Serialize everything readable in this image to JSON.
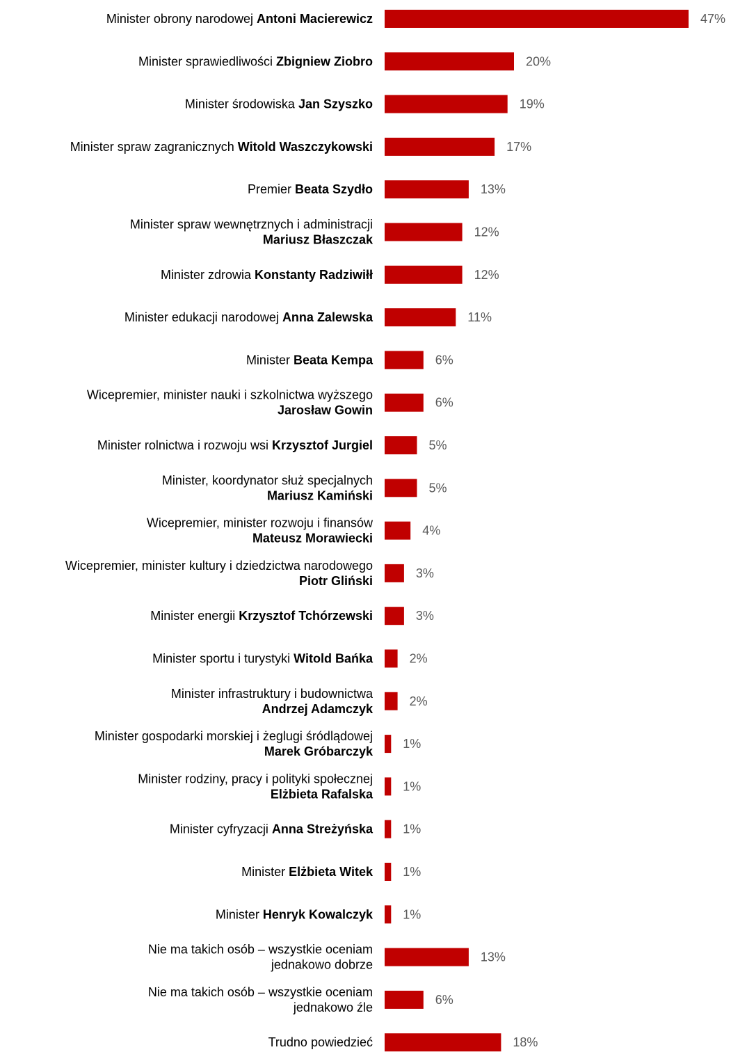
{
  "chart_data": {
    "type": "bar",
    "orientation": "horizontal",
    "bar_color": "#c00000",
    "value_suffix": "%",
    "xlim": [
      0,
      47
    ],
    "grid": false,
    "legend": "none",
    "categories": [
      {
        "lines": [
          {
            "prefix": "Minister obrony narodowej ",
            "name": "Antoni Macierewicz"
          }
        ],
        "value": 47
      },
      {
        "lines": [
          {
            "prefix": "Minister sprawiedliwości ",
            "name": "Zbigniew Ziobro"
          }
        ],
        "value": 20
      },
      {
        "lines": [
          {
            "prefix": "Minister środowiska ",
            "name": "Jan Szyszko"
          }
        ],
        "value": 19
      },
      {
        "lines": [
          {
            "prefix": "Minister spraw zagranicznych ",
            "name": "Witold Waszczykowski"
          }
        ],
        "value": 17
      },
      {
        "lines": [
          {
            "prefix": "Premier ",
            "name": "Beata Szydło"
          }
        ],
        "value": 13
      },
      {
        "lines": [
          {
            "prefix": "Minister spraw wewnętrznych i administracji",
            "name": ""
          },
          {
            "prefix": "",
            "name": "Mariusz Błaszczak"
          }
        ],
        "value": 12
      },
      {
        "lines": [
          {
            "prefix": "Minister zdrowia ",
            "name": "Konstanty Radziwiłł"
          }
        ],
        "value": 12
      },
      {
        "lines": [
          {
            "prefix": "Minister edukacji narodowej ",
            "name": "Anna Zalewska"
          }
        ],
        "value": 11
      },
      {
        "lines": [
          {
            "prefix": "Minister ",
            "name": "Beata Kempa"
          }
        ],
        "value": 6
      },
      {
        "lines": [
          {
            "prefix": "Wicepremier, minister nauki i szkolnictwa wyższego",
            "name": ""
          },
          {
            "prefix": "",
            "name": "Jarosław Gowin"
          }
        ],
        "value": 6
      },
      {
        "lines": [
          {
            "prefix": "Minister rolnictwa i rozwoju wsi ",
            "name": "Krzysztof Jurgiel"
          }
        ],
        "value": 5
      },
      {
        "lines": [
          {
            "prefix": "Minister, koordynator służ specjalnych",
            "name": ""
          },
          {
            "prefix": "",
            "name": "Mariusz Kamiński"
          }
        ],
        "value": 5
      },
      {
        "lines": [
          {
            "prefix": "Wicepremier, minister rozwoju i finansów",
            "name": ""
          },
          {
            "prefix": "",
            "name": "Mateusz Morawiecki"
          }
        ],
        "value": 4
      },
      {
        "lines": [
          {
            "prefix": "Wicepremier, minister kultury i dziedzictwa narodowego",
            "name": ""
          },
          {
            "prefix": "",
            "name": "Piotr Gliński"
          }
        ],
        "value": 3
      },
      {
        "lines": [
          {
            "prefix": "Minister energii ",
            "name": "Krzysztof Tchórzewski"
          }
        ],
        "value": 3
      },
      {
        "lines": [
          {
            "prefix": "Minister sportu i turystyki ",
            "name": "Witold Bańka"
          }
        ],
        "value": 2
      },
      {
        "lines": [
          {
            "prefix": "Minister infrastruktury i budownictwa",
            "name": ""
          },
          {
            "prefix": "",
            "name": "Andrzej Adamczyk"
          }
        ],
        "value": 2
      },
      {
        "lines": [
          {
            "prefix": "Minister gospodarki morskiej i żeglugi śródlądowej",
            "name": ""
          },
          {
            "prefix": "",
            "name": "Marek Gróbarczyk"
          }
        ],
        "value": 1
      },
      {
        "lines": [
          {
            "prefix": "Minister rodziny, pracy i polityki społecznej",
            "name": ""
          },
          {
            "prefix": "",
            "name": "Elżbieta Rafalska"
          }
        ],
        "value": 1
      },
      {
        "lines": [
          {
            "prefix": "Minister cyfryzacji ",
            "name": "Anna Streżyńska"
          }
        ],
        "value": 1
      },
      {
        "lines": [
          {
            "prefix": "Minister ",
            "name": "Elżbieta Witek"
          }
        ],
        "value": 1
      },
      {
        "lines": [
          {
            "prefix": "Minister ",
            "name": "Henryk Kowalczyk"
          }
        ],
        "value": 1
      },
      {
        "lines": [
          {
            "prefix": "Nie ma takich osób – wszystkie oceniam",
            "name": ""
          },
          {
            "prefix": "jednakowo dobrze",
            "name": ""
          }
        ],
        "value": 13
      },
      {
        "lines": [
          {
            "prefix": "Nie ma takich osób – wszystkie oceniam",
            "name": ""
          },
          {
            "prefix": "jednakowo źle",
            "name": ""
          }
        ],
        "value": 6
      },
      {
        "lines": [
          {
            "prefix": "Trudno powiedzieć",
            "name": ""
          }
        ],
        "value": 18
      }
    ]
  }
}
